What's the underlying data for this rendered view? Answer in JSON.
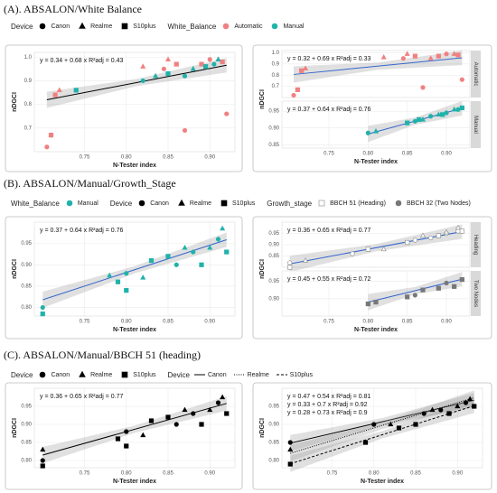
{
  "sections": [
    {
      "title": "(A). ABSALON/White Balance",
      "legend": [
        {
          "title": "Device",
          "items": [
            {
              "label": "Canon",
              "marker": "circle",
              "color": "#000000"
            },
            {
              "label": "Realme",
              "marker": "triangle",
              "color": "#000000"
            },
            {
              "label": "S10plus",
              "marker": "square",
              "color": "#000000"
            }
          ]
        },
        {
          "title": "White_Balance",
          "items": [
            {
              "label": "Automatic",
              "marker": "circle",
              "color": "#f08080"
            },
            {
              "label": "Manual",
              "marker": "circle",
              "color": "#20b2aa"
            }
          ]
        }
      ]
    },
    {
      "title": "(B). ABSALON/Manual/Growth_Stage",
      "legend": [
        {
          "title": "White_Balance",
          "items": [
            {
              "label": "Manual",
              "marker": "circle",
              "color": "#20b2aa"
            }
          ]
        },
        {
          "title": "Device",
          "items": [
            {
              "label": "Canon",
              "marker": "circle",
              "color": "#000000"
            },
            {
              "label": "Realme",
              "marker": "triangle",
              "color": "#000000"
            },
            {
              "label": "S10plus",
              "marker": "square",
              "color": "#000000"
            }
          ]
        },
        {
          "title": "Growth_stage",
          "items": [
            {
              "label": "BBCH 51 (Heading)",
              "marker": "open-square",
              "color": "#ffffff"
            },
            {
              "label": "BBCH 32 (Two Nodes)",
              "marker": "circle",
              "color": "#777777"
            }
          ]
        }
      ]
    },
    {
      "title": "(C). ABSALON/Manual/BBCH 51 (heading)",
      "legend": [
        {
          "title": "Device",
          "items": [
            {
              "label": "Canon",
              "marker": "circle",
              "color": "#000000"
            },
            {
              "label": "Realme",
              "marker": "triangle",
              "color": "#000000"
            },
            {
              "label": "S10plus",
              "marker": "square",
              "color": "#000000"
            }
          ]
        },
        {
          "title": "Device",
          "items": [
            {
              "label": "Canon",
              "marker": "line-solid",
              "color": "#000000"
            },
            {
              "label": "Realme",
              "marker": "line-dotted",
              "color": "#000000"
            },
            {
              "label": "S10plus",
              "marker": "line-dashed",
              "color": "#000000"
            }
          ]
        }
      ]
    }
  ],
  "chart_data": [
    {
      "type": "scatter",
      "x_label": "N-Tester index",
      "y_label": "nDGCI",
      "xlim": [
        0.69,
        0.93
      ],
      "ylim": [
        0.6,
        1.02
      ],
      "xticks": [
        0.75,
        {
          "value": 0.8,
          "label": "0.80"
        },
        0.85,
        {
          "value": 0.9,
          "label": "0.90"
        }
      ],
      "yticks": [
        0.7,
        0.8,
        0.9,
        {
          "value": 1,
          "label": "1.0"
        }
      ],
      "fits": [
        {
          "intercept": 0.34,
          "slope": 0.68,
          "color": "#000000",
          "dash": "solid"
        }
      ],
      "annotations": [
        "y = 0.34 + 0.68 x    R²adj = 0.43"
      ],
      "series": [
        {
          "color": "#f08080",
          "marker": "circle",
          "x": [
            0.705,
            0.845,
            0.87,
            0.9,
            0.92
          ],
          "values": [
            0.62,
            0.95,
            0.69,
            0.99,
            0.76
          ]
        },
        {
          "color": "#f08080",
          "marker": "triangle",
          "x": [
            0.72,
            0.82,
            0.85,
            0.88,
            0.91
          ],
          "values": [
            0.86,
            0.96,
            0.99,
            0.95,
            0.99
          ]
        },
        {
          "color": "#f08080",
          "marker": "square",
          "x": [
            0.71,
            0.715,
            0.86,
            0.89,
            0.915
          ],
          "values": [
            0.67,
            0.84,
            0.97,
            0.97,
            0.98
          ]
        },
        {
          "color": "#20b2aa",
          "marker": "circle",
          "x": [
            0.82,
            0.87,
            0.905
          ],
          "values": [
            0.9,
            0.92,
            0.97
          ]
        },
        {
          "color": "#20b2aa",
          "marker": "triangle",
          "x": [
            0.835,
            0.88,
            0.91
          ],
          "values": [
            0.92,
            0.95,
            0.99
          ]
        },
        {
          "color": "#20b2aa",
          "marker": "square",
          "x": [
            0.74,
            0.85,
            0.895
          ],
          "values": [
            0.86,
            0.93,
            0.96
          ]
        }
      ]
    },
    {
      "type": "scatter",
      "y_label": "nDGCI",
      "strip": "Automatic",
      "xlim": [
        0.69,
        0.93
      ],
      "ylim": [
        0.6,
        1.02
      ],
      "yticks": [
        0.7,
        0.8,
        0.9,
        {
          "value": 1,
          "label": "1.0"
        }
      ],
      "fits": [
        {
          "intercept": 0.32,
          "slope": 0.69,
          "color": "#3366cc",
          "dash": "solid"
        }
      ],
      "annotations": [
        "y = 0.32 + 0.69 x    R²adj = 0.33"
      ],
      "series": [
        {
          "color": "#f08080",
          "marker": "circle",
          "x": [
            0.705,
            0.845,
            0.87,
            0.9,
            0.92
          ],
          "values": [
            0.62,
            0.95,
            0.69,
            0.99,
            0.76
          ]
        },
        {
          "color": "#f08080",
          "marker": "triangle",
          "x": [
            0.72,
            0.82,
            0.85,
            0.88,
            0.91
          ],
          "values": [
            0.86,
            0.96,
            0.99,
            0.95,
            0.99
          ]
        },
        {
          "color": "#f08080",
          "marker": "square",
          "x": [
            0.71,
            0.715,
            0.86,
            0.89,
            0.915
          ],
          "values": [
            0.67,
            0.84,
            0.97,
            0.97,
            0.98
          ]
        }
      ]
    },
    {
      "type": "scatter",
      "x_label": "N-Tester index",
      "strip": "Manual",
      "xlim": [
        0.69,
        0.93
      ],
      "ylim": [
        0.84,
        0.98
      ],
      "xticks": [
        0.75,
        {
          "value": 0.8,
          "label": "0.80"
        },
        0.85,
        {
          "value": 0.9,
          "label": "0.90"
        }
      ],
      "yticks": [
        0.85,
        {
          "value": 0.9,
          "label": "0.90"
        },
        0.95
      ],
      "fits": [
        {
          "intercept": 0.37,
          "slope": 0.64,
          "color": "#3366cc",
          "dash": "solid"
        }
      ],
      "annotations": [
        "y = 0.37 + 0.64 x    R²adj = 0.76"
      ],
      "series": [
        {
          "color": "#20b2aa",
          "marker": "circle",
          "x": [
            0.8,
            0.86,
            0.88,
            0.9,
            0.915
          ],
          "values": [
            0.885,
            0.92,
            0.935,
            0.945,
            0.955
          ]
        },
        {
          "color": "#20b2aa",
          "marker": "triangle",
          "x": [
            0.81,
            0.87,
            0.89,
            0.91
          ],
          "values": [
            0.89,
            0.925,
            0.94,
            0.955
          ]
        },
        {
          "color": "#20b2aa",
          "marker": "square",
          "x": [
            0.85,
            0.865,
            0.895,
            0.92
          ],
          "values": [
            0.915,
            0.925,
            0.94,
            0.96
          ]
        }
      ]
    },
    {
      "type": "scatter",
      "x_label": "N-Tester index",
      "y_label": "nDGCI",
      "xlim": [
        0.69,
        0.93
      ],
      "ylim": [
        0.78,
        1.0
      ],
      "xticks": [
        0.75,
        {
          "value": 0.8,
          "label": "0.80"
        },
        0.85,
        {
          "value": 0.9,
          "label": "0.90"
        }
      ],
      "yticks": [
        {
          "value": 0.8,
          "label": "0.80"
        },
        0.85,
        {
          "value": 0.9,
          "label": "0.90"
        },
        0.95
      ],
      "fits": [
        {
          "intercept": 0.37,
          "slope": 0.64,
          "color": "#3366cc",
          "dash": "solid"
        }
      ],
      "annotations": [
        "y = 0.37 + 0.64 x    R²adj = 0.76"
      ],
      "series": [
        {
          "color": "#20b2aa",
          "marker": "circle",
          "x": [
            0.7,
            0.8,
            0.86,
            0.88,
            0.91
          ],
          "values": [
            0.8,
            0.88,
            0.9,
            0.93,
            0.96
          ]
        },
        {
          "color": "#20b2aa",
          "marker": "triangle",
          "x": [
            0.78,
            0.82,
            0.87,
            0.9,
            0.915
          ],
          "values": [
            0.875,
            0.87,
            0.94,
            0.94,
            0.985
          ]
        },
        {
          "color": "#20b2aa",
          "marker": "square",
          "x": [
            0.7,
            0.79,
            0.8,
            0.83,
            0.85,
            0.89,
            0.92
          ],
          "values": [
            0.785,
            0.86,
            0.84,
            0.91,
            0.92,
            0.9,
            0.93
          ]
        }
      ]
    },
    {
      "type": "scatter",
      "y_label": "nDGCI",
      "strip": "Heading",
      "xlim": [
        0.69,
        0.93
      ],
      "ylim": [
        0.8,
        1.0
      ],
      "yticks": [
        0.85,
        {
          "value": 0.9,
          "label": "0.90"
        },
        0.95
      ],
      "fits": [
        {
          "intercept": 0.36,
          "slope": 0.65,
          "color": "#3366cc",
          "dash": "solid"
        }
      ],
      "annotations": [
        "y = 0.36 + 0.65 x    R²adj = 0.77"
      ],
      "series": [
        {
          "color": "#ffffff",
          "marker": "circle",
          "x": [
            0.7,
            0.78,
            0.86,
            0.88,
            0.9,
            0.915
          ],
          "values": [
            0.82,
            0.86,
            0.92,
            0.93,
            0.95,
            0.96
          ]
        },
        {
          "color": "#ffffff",
          "marker": "triangle",
          "x": [
            0.72,
            0.82,
            0.87,
            0.9,
            0.915
          ],
          "values": [
            0.83,
            0.88,
            0.94,
            0.955,
            0.975
          ]
        },
        {
          "color": "#ffffff",
          "marker": "square",
          "x": [
            0.7,
            0.8,
            0.85,
            0.89,
            0.92
          ],
          "values": [
            0.8,
            0.88,
            0.91,
            0.94,
            0.96
          ]
        }
      ]
    },
    {
      "type": "scatter",
      "x_label": "N-Tester index",
      "strip": "Two Nodes",
      "xlim": [
        0.69,
        0.93
      ],
      "ylim": [
        0.85,
        0.98
      ],
      "xticks": [
        0.75,
        {
          "value": 0.8,
          "label": "0.80"
        },
        0.85,
        {
          "value": 0.9,
          "label": "0.90"
        }
      ],
      "yticks": [
        {
          "value": 0.9,
          "label": "0.90"
        },
        0.95
      ],
      "fits": [
        {
          "intercept": 0.45,
          "slope": 0.55,
          "color": "#3366cc",
          "dash": "solid"
        }
      ],
      "annotations": [
        "y = 0.45 + 0.55 x    R²adj = 0.72"
      ],
      "series": [
        {
          "color": "#777777",
          "marker": "square",
          "x": [
            0.8,
            0.81,
            0.85,
            0.87,
            0.89,
            0.91,
            0.92
          ],
          "values": [
            0.885,
            0.89,
            0.905,
            0.925,
            0.93,
            0.935,
            0.955
          ]
        },
        {
          "color": "#777777",
          "marker": "circle",
          "x": [
            0.86,
            0.9
          ],
          "values": [
            0.91,
            0.945
          ]
        }
      ]
    },
    {
      "type": "scatter",
      "x_label": "N-Tester index",
      "y_label": "nDGCI",
      "xlim": [
        0.69,
        0.93
      ],
      "ylim": [
        0.78,
        1.0
      ],
      "xticks": [
        0.75,
        {
          "value": 0.8,
          "label": "0.80"
        },
        0.85,
        {
          "value": 0.9,
          "label": "0.90"
        }
      ],
      "yticks": [
        {
          "value": 0.8,
          "label": "0.80"
        },
        0.85,
        {
          "value": 0.9,
          "label": "0.90"
        },
        0.95
      ],
      "fits": [
        {
          "intercept": 0.36,
          "slope": 0.65,
          "color": "#000000",
          "dash": "solid"
        }
      ],
      "annotations": [
        "y = 0.36 + 0.65 x    R²adj = 0.77"
      ],
      "series": [
        {
          "color": "#000000",
          "marker": "circle",
          "x": [
            0.7,
            0.8,
            0.86,
            0.88,
            0.91
          ],
          "values": [
            0.8,
            0.88,
            0.9,
            0.93,
            0.96
          ]
        },
        {
          "color": "#000000",
          "marker": "triangle",
          "x": [
            0.7,
            0.82,
            0.87,
            0.9,
            0.915
          ],
          "values": [
            0.83,
            0.87,
            0.94,
            0.94,
            0.975
          ]
        },
        {
          "color": "#000000",
          "marker": "square",
          "x": [
            0.7,
            0.79,
            0.8,
            0.83,
            0.85,
            0.89,
            0.92
          ],
          "values": [
            0.785,
            0.86,
            0.84,
            0.91,
            0.92,
            0.9,
            0.93
          ]
        }
      ]
    },
    {
      "type": "scatter",
      "x_label": "N-Tester index",
      "y_label": "nDGCI",
      "xlim": [
        0.69,
        0.93
      ],
      "ylim": [
        0.78,
        1.0
      ],
      "xticks": [
        0.75,
        {
          "value": 0.8,
          "label": "0.80"
        },
        0.85,
        {
          "value": 0.9,
          "label": "0.90"
        }
      ],
      "yticks": [
        {
          "value": 0.8,
          "label": "0.80"
        },
        0.85,
        {
          "value": 0.9,
          "label": "0.90"
        },
        0.95
      ],
      "fits": [
        {
          "intercept": 0.47,
          "slope": 0.54,
          "color": "#000000",
          "dash": "solid"
        },
        {
          "intercept": 0.33,
          "slope": 0.7,
          "color": "#000000",
          "dash": "dotted"
        },
        {
          "intercept": 0.28,
          "slope": 0.73,
          "color": "#000000",
          "dash": "dashed"
        }
      ],
      "annotations": [
        "y = 0.47 + 0.54 x    R²adj = 0.81",
        "y = 0.33 + 0.7 x    R²adj = 0.92",
        "y = 0.28 + 0.73 x    R²adj = 0.9"
      ],
      "series": [
        {
          "color": "#000000",
          "marker": "circle",
          "x": [
            0.7,
            0.8,
            0.86,
            0.88,
            0.91
          ],
          "values": [
            0.85,
            0.9,
            0.93,
            0.94,
            0.96
          ]
        },
        {
          "color": "#000000",
          "marker": "triangle",
          "x": [
            0.7,
            0.82,
            0.87,
            0.9,
            0.915
          ],
          "values": [
            0.83,
            0.9,
            0.94,
            0.95,
            0.97
          ]
        },
        {
          "color": "#000000",
          "marker": "square",
          "x": [
            0.7,
            0.79,
            0.83,
            0.85,
            0.89,
            0.92
          ],
          "values": [
            0.79,
            0.85,
            0.89,
            0.9,
            0.93,
            0.95
          ]
        }
      ]
    }
  ]
}
